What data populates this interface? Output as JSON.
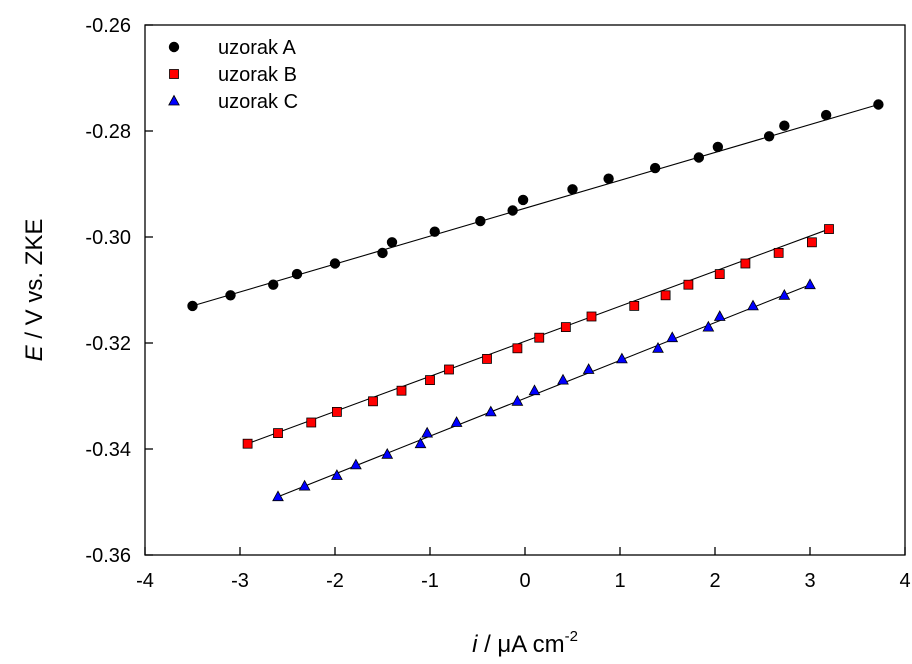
{
  "chart_data": {
    "type": "scatter",
    "xlabel": {
      "italic": "i",
      "rest": " / μA cm",
      "sup": "-2"
    },
    "ylabel": {
      "italic": "E",
      "rest": " / V vs. ZKE"
    },
    "xlim": [
      -4,
      4
    ],
    "ylim": [
      -0.36,
      -0.26
    ],
    "x_ticks": [
      -4,
      -3,
      -2,
      -1,
      0,
      1,
      2,
      3,
      4
    ],
    "x_tick_labels": [
      "-4",
      "-3",
      "-2",
      "-1",
      "0",
      "1",
      "2",
      "3",
      "4"
    ],
    "y_ticks": [
      -0.36,
      -0.34,
      -0.32,
      -0.3,
      -0.28,
      -0.26
    ],
    "y_tick_labels": [
      "-0.36",
      "-0.34",
      "-0.32",
      "-0.30",
      "-0.28",
      "-0.26"
    ],
    "grid": false,
    "legend_position": "top-left",
    "series": [
      {
        "name": "uzorak A",
        "marker": "circle",
        "color": "#000000",
        "points": [
          [
            -3.5,
            -0.313
          ],
          [
            -3.1,
            -0.311
          ],
          [
            -2.65,
            -0.309
          ],
          [
            -2.4,
            -0.307
          ],
          [
            -2.0,
            -0.305
          ],
          [
            -1.5,
            -0.303
          ],
          [
            -1.4,
            -0.301
          ],
          [
            -0.95,
            -0.299
          ],
          [
            -0.47,
            -0.297
          ],
          [
            -0.13,
            -0.295
          ],
          [
            -0.02,
            -0.293
          ],
          [
            0.5,
            -0.291
          ],
          [
            0.88,
            -0.289
          ],
          [
            1.37,
            -0.287
          ],
          [
            1.83,
            -0.285
          ],
          [
            2.03,
            -0.283
          ],
          [
            2.57,
            -0.281
          ],
          [
            2.73,
            -0.279
          ],
          [
            3.17,
            -0.277
          ],
          [
            3.72,
            -0.275
          ]
        ],
        "fit": [
          [
            -3.5,
            -0.313
          ],
          [
            3.72,
            -0.275
          ]
        ]
      },
      {
        "name": "uzorak B",
        "marker": "square",
        "color": "#ff0000",
        "points": [
          [
            -2.92,
            -0.339
          ],
          [
            -2.6,
            -0.337
          ],
          [
            -2.25,
            -0.335
          ],
          [
            -1.98,
            -0.333
          ],
          [
            -1.6,
            -0.331
          ],
          [
            -1.3,
            -0.329
          ],
          [
            -1.0,
            -0.327
          ],
          [
            -0.8,
            -0.325
          ],
          [
            -0.4,
            -0.323
          ],
          [
            -0.08,
            -0.321
          ],
          [
            0.15,
            -0.319
          ],
          [
            0.43,
            -0.317
          ],
          [
            0.7,
            -0.315
          ],
          [
            1.15,
            -0.313
          ],
          [
            1.48,
            -0.311
          ],
          [
            1.72,
            -0.309
          ],
          [
            2.05,
            -0.307
          ],
          [
            2.32,
            -0.305
          ],
          [
            2.67,
            -0.303
          ],
          [
            3.02,
            -0.301
          ],
          [
            3.2,
            -0.2985
          ]
        ],
        "fit": [
          [
            -2.92,
            -0.339
          ],
          [
            3.2,
            -0.2985
          ]
        ]
      },
      {
        "name": "uzorak C",
        "marker": "triangle",
        "color": "#0000ff",
        "points": [
          [
            -2.6,
            -0.349
          ],
          [
            -2.32,
            -0.347
          ],
          [
            -1.98,
            -0.345
          ],
          [
            -1.78,
            -0.343
          ],
          [
            -1.45,
            -0.341
          ],
          [
            -1.1,
            -0.339
          ],
          [
            -1.03,
            -0.337
          ],
          [
            -0.72,
            -0.335
          ],
          [
            -0.36,
            -0.333
          ],
          [
            -0.08,
            -0.331
          ],
          [
            0.1,
            -0.329
          ],
          [
            0.4,
            -0.327
          ],
          [
            0.67,
            -0.325
          ],
          [
            1.02,
            -0.323
          ],
          [
            1.4,
            -0.321
          ],
          [
            1.55,
            -0.319
          ],
          [
            1.93,
            -0.317
          ],
          [
            2.05,
            -0.315
          ],
          [
            2.4,
            -0.313
          ],
          [
            2.73,
            -0.311
          ],
          [
            3.0,
            -0.309
          ]
        ],
        "fit": [
          [
            -2.6,
            -0.349
          ],
          [
            3.0,
            -0.309
          ]
        ]
      }
    ]
  }
}
